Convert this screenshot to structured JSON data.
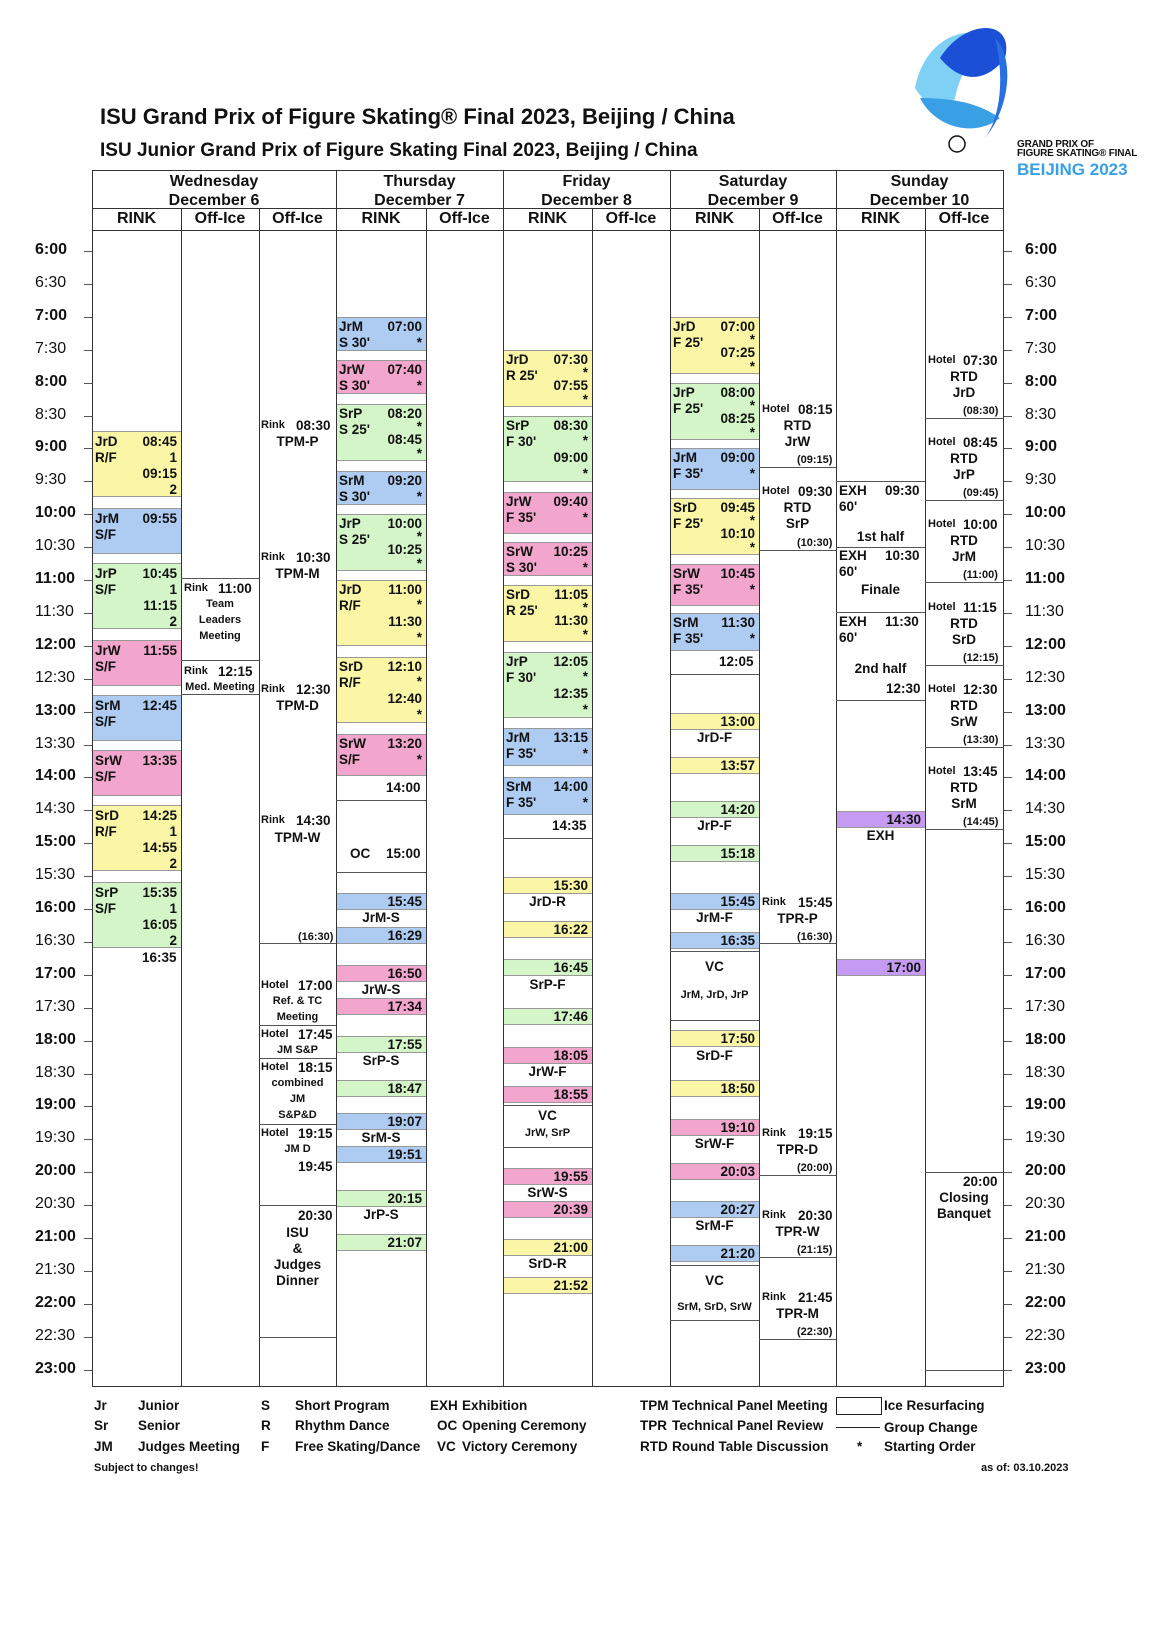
{
  "titles": {
    "main": "ISU Grand Prix of Figure Skating® Final 2023, Beijing / China",
    "junior": "ISU Junior Grand Prix of Figure Skating Final 2023, Beijing / China"
  },
  "logo": {
    "line1": "GRAND PRIX OF",
    "line2": "FIGURE SKATING® FINAL",
    "city": "BEIJING 2023",
    "colors": [
      "#1a4fd6",
      "#3aa0e6",
      "#7fd0f5"
    ]
  },
  "days": [
    {
      "name": "Wednesday",
      "date": "December 6",
      "subcols": [
        "RINK",
        "Off-Ice",
        "Off-Ice"
      ]
    },
    {
      "name": "Thursday",
      "date": "December 7",
      "subcols": [
        "RINK",
        "Off-Ice"
      ]
    },
    {
      "name": "Friday",
      "date": "December 8",
      "subcols": [
        "RINK",
        "Off-Ice"
      ]
    },
    {
      "name": "Saturday",
      "date": "December 9",
      "subcols": [
        "RINK",
        "Off-Ice"
      ]
    },
    {
      "name": "Sunday",
      "date": "December 10",
      "subcols": [
        "RINK",
        "Off-Ice"
      ]
    }
  ],
  "times": [
    "6:00",
    "6:30",
    "7:00",
    "7:30",
    "8:00",
    "8:30",
    "9:00",
    "9:30",
    "10:00",
    "10:30",
    "11:00",
    "11:30",
    "12:00",
    "12:30",
    "13:00",
    "13:30",
    "14:00",
    "14:30",
    "15:00",
    "15:30",
    "16:00",
    "16:30",
    "17:00",
    "17:30",
    "18:00",
    "18:30",
    "19:00",
    "19:30",
    "20:00",
    "20:30",
    "21:00",
    "21:30",
    "22:00",
    "22:30",
    "23:00"
  ],
  "colors": {
    "yellow": "#fbf6a6",
    "blue": "#aecbf1",
    "pink": "#f3a6cd",
    "green": "#d4f5c8",
    "purple": "#c59af2"
  },
  "text": {
    "wed": {
      "jrd_code": "JrD",
      "jrd_rf": "R/F",
      "jrd_t1": "08:45",
      "jrd_n1": "1",
      "jrd_t2": "09:15",
      "jrd_n2": "2",
      "jrm_code": "JrM",
      "jrm_sf": "S/F",
      "jrm_t": "09:55",
      "jrp_code": "JrP",
      "jrp_sf": "S/F",
      "jrp_t1": "10:45",
      "jrp_n1": "1",
      "jrp_t2": "11:15",
      "jrp_n2": "2",
      "jrw_code": "JrW",
      "jrw_sf": "S/F",
      "jrw_t": "11:55",
      "srm_code": "SrM",
      "srm_sf": "S/F",
      "srm_t": "12:45",
      "srw_code": "SrW",
      "srw_sf": "S/F",
      "srw_t": "13:35",
      "srd_code": "SrD",
      "srd_rf": "R/F",
      "srd_t1": "14:25",
      "srd_n1": "1",
      "srd_t2": "14:55",
      "srd_n2": "2",
      "srp_code": "SrP",
      "srp_sf": "S/F",
      "srp_t1": "15:35",
      "srp_n1": "1",
      "srp_t2": "16:05",
      "srp_n2": "2",
      "end": "16:35",
      "o1_rink": "Rink",
      "o1_t": "11:00",
      "o1_l1": "Team",
      "o1_l2": "Leaders",
      "o1_l3": "Meeting",
      "o1b_rink": "Rink",
      "o1b_t": "12:15",
      "o1b_l": "Med. Meeting",
      "o2a_rink": "Rink",
      "o2a_t": "08:30",
      "o2a_l": "TPM-P",
      "o2b_rink": "Rink",
      "o2b_t": "10:30",
      "o2b_l": "TPM-M",
      "o2c_rink": "Rink",
      "o2c_t": "12:30",
      "o2c_l": "TPM-D",
      "o2d_rink": "Rink",
      "o2d_t": "14:30",
      "o2d_l": "TPM-W",
      "o2d_end": "(16:30)",
      "o2e_h": "Hotel",
      "o2e_t": "17:00",
      "o2e_l1": "Ref. & TC",
      "o2e_l2": "Meeting",
      "o2f_h": "Hotel",
      "o2f_t": "17:45",
      "o2f_l": "JM S&P",
      "o2g_h": "Hotel",
      "o2g_t": "18:15",
      "o2g_l1": "combined",
      "o2g_l2": "JM",
      "o2g_l3": "S&P&D",
      "o2h_h": "Hotel",
      "o2h_t": "19:15",
      "o2h_l": "JM D",
      "o2h_end": "19:45",
      "o2i_t": "20:30",
      "o2i_l1": "ISU",
      "o2i_l2": "&",
      "o2i_l3": "Judges",
      "o2i_l4": "Dinner"
    },
    "thu": {
      "jrm_code": "JrM",
      "jrm_s": "S 30'",
      "jrm_t": "07:00",
      "jrm_st": "*",
      "jrw_code": "JrW",
      "jrw_s": "S 30'",
      "jrw_t": "07:40",
      "jrw_st": "*",
      "srp_code": "SrP",
      "srp_s": "S 25'",
      "srp_t1": "08:20",
      "srp_t2": "08:45",
      "srp_st1": "*",
      "srp_st2": "*",
      "srm_code": "SrM",
      "srm_s": "S 30'",
      "srm_t": "09:20",
      "srm_st": "*",
      "jrp_code": "JrP",
      "jrp_s": "S 25'",
      "jrp_t1": "10:00",
      "jrp_t2": "10:25",
      "jrp_st1": "*",
      "jrp_st2": "*",
      "jrd_code": "JrD",
      "jrd_rf": "R/F",
      "jrd_t1": "11:00",
      "jrd_t2": "11:30",
      "jrd_st1": "*",
      "jrd_st2": "*",
      "srd_code": "SrD",
      "srd_rf": "R/F",
      "srd_t1": "12:10",
      "srd_t2": "12:40",
      "srd_st1": "*",
      "srd_st2": "*",
      "srw_code": "SrW",
      "srw_sf": "S/F",
      "srw_t": "13:20",
      "srw_st": "*",
      "end1": "14:00",
      "oc_l": "OC",
      "oc_t": "15:00",
      "jrms_t1": "15:45",
      "jrms_l": "JrM-S",
      "jrms_t2": "16:29",
      "jrws_t1": "16:50",
      "jrws_l": "JrW-S",
      "jrws_t2": "17:34",
      "srps_t1": "17:55",
      "srps_l": "SrP-S",
      "srps_t2": "18:47",
      "srms_t1": "19:07",
      "srms_l": "SrM-S",
      "srms_t2": "19:51",
      "jrps_t1": "20:15",
      "jrps_l": "JrP-S",
      "jrps_t2": "21:07"
    },
    "fri": {
      "jrd_code": "JrD",
      "jrd_r": "R 25'",
      "jrd_t1": "07:30",
      "jrd_t2": "07:55",
      "jrd_st1": "*",
      "jrd_st2": "*",
      "srp_code": "SrP",
      "srp_f": "F 30'",
      "srp_t1": "08:30",
      "srp_t2": "09:00",
      "srp_st1": "*",
      "srp_st2": "*",
      "jrw_code": "JrW",
      "jrw_f": "F 35'",
      "jrw_t": "09:40",
      "jrw_st": "*",
      "srw_code": "SrW",
      "srw_s": "S 30'",
      "srw_t": "10:25",
      "srw_st": "*",
      "srd_code": "SrD",
      "srd_r": "R 25'",
      "srd_t1": "11:05",
      "srd_t2": "11:30",
      "srd_st1": "*",
      "srd_st2": "*",
      "jrp_code": "JrP",
      "jrp_f": "F 30'",
      "jrp_t1": "12:05",
      "jrp_t2": "12:35",
      "jrp_st1": "*",
      "jrp_st2": "*",
      "jrm_code": "JrM",
      "jrm_f": "F 35'",
      "jrm_t": "13:15",
      "jrm_st": "*",
      "srm_code": "SrM",
      "srm_f": "F 35'",
      "srm_t": "14:00",
      "srm_st": "*",
      "end1": "14:35",
      "jrdr_t1": "15:30",
      "jrdr_l": "JrD-R",
      "jrdr_t2": "16:22",
      "srpf_t1": "16:45",
      "srpf_l": "SrP-F",
      "srpf_t2": "17:46",
      "jrwf_t1": "18:05",
      "jrwf_l": "JrW-F",
      "jrwf_t2": "18:55",
      "vc_l": "VC",
      "vc_s": "JrW, SrP",
      "srws_t1": "19:55",
      "srws_l": "SrW-S",
      "srws_t2": "20:39",
      "srdr_t1": "21:00",
      "srdr_l": "SrD-R",
      "srdr_t2": "21:52"
    },
    "sat": {
      "jrd_code": "JrD",
      "jrd_f": "F 25'",
      "jrd_t1": "07:00",
      "jrd_t2": "07:25",
      "jrd_st1": "*",
      "jrd_st2": "*",
      "jrp_code": "JrP",
      "jrp_f": "F 25'",
      "jrp_t1": "08:00",
      "jrp_t2": "08:25",
      "jrp_st1": "*",
      "jrp_st2": "*",
      "jrm_code": "JrM",
      "jrm_f": "F 35'",
      "jrm_t": "09:00",
      "jrm_st": "*",
      "srd_code": "SrD",
      "srd_f": "F 25'",
      "srd_t1": "09:45",
      "srd_t2": "10:10",
      "srd_st1": "*",
      "srd_st2": "*",
      "srw_code": "SrW",
      "srw_f": "F 35'",
      "srw_t": "10:45",
      "srw_st": "*",
      "srm_code": "SrM",
      "srm_f": "F 35'",
      "srm_t": "11:30",
      "srm_st": "*",
      "end1": "12:05",
      "jrdf_t1": "13:00",
      "jrdf_l": "JrD-F",
      "jrdf_t2": "13:57",
      "jrpf_t1": "14:20",
      "jrpf_l": "JrP-F",
      "jrpf_t2": "15:18",
      "jrmf_t1": "15:45",
      "jrmf_l": "JrM-F",
      "jrmf_t2": "16:35",
      "vc1_l": "VC",
      "vc1_s": "JrM, JrD, JrP",
      "srdf_t1": "17:50",
      "srdf_l": "SrD-F",
      "srdf_t2": "18:50",
      "srwf_t1": "19:10",
      "srwf_l": "SrW-F",
      "srwf_t2": "20:03",
      "srmf_t1": "20:27",
      "srmf_l": "SrM-F",
      "srmf_t2": "21:20",
      "vc2_l": "VC",
      "vc2_s": "SrM, SrD, SrW",
      "o_a_h": "Hotel",
      "o_a_t": "08:15",
      "o_a_l1": "RTD",
      "o_a_l2": "JrW",
      "o_a_e": "(09:15)",
      "o_b_h": "Hotel",
      "o_b_t": "09:30",
      "o_b_l1": "RTD",
      "o_b_l2": "SrP",
      "o_b_e": "(10:30)",
      "o_c_r": "Rink",
      "o_c_t": "15:45",
      "o_c_l": "TPR-P",
      "o_c_e": "(16:30)",
      "o_d_r": "Rink",
      "o_d_t": "19:15",
      "o_d_l": "TPR-D",
      "o_d_e": "(20:00)",
      "o_e_r": "Rink",
      "o_e_t": "20:30",
      "o_e_l": "TPR-W",
      "o_e_e": "(21:15)",
      "o_f_r": "Rink",
      "o_f_t": "21:45",
      "o_f_l": "TPR-M",
      "o_f_e": "(22:30)"
    },
    "sun": {
      "exh1_l": "EXH",
      "exh1_t": "09:30",
      "exh1_d": "60'",
      "half1": "1st half",
      "exh2_l": "EXH",
      "exh2_t": "10:30",
      "exh2_d": "60'",
      "finale": "Finale",
      "exh3_l": "EXH",
      "exh3_t": "11:30",
      "exh3_d": "60'",
      "half2": "2nd half",
      "end1": "12:30",
      "exh_t1": "14:30",
      "exh_l": "EXH",
      "exh_t2": "17:00",
      "o_a_h": "Hotel",
      "o_a_t": "07:30",
      "o_a_l1": "RTD",
      "o_a_l2": "JrD",
      "o_a_e": "(08:30)",
      "o_b_h": "Hotel",
      "o_b_t": "08:45",
      "o_b_l1": "RTD",
      "o_b_l2": "JrP",
      "o_b_e": "(09:45)",
      "o_c_h": "Hotel",
      "o_c_t": "10:00",
      "o_c_l1": "RTD",
      "o_c_l2": "JrM",
      "o_c_e": "(11:00)",
      "o_d_h": "Hotel",
      "o_d_t": "11:15",
      "o_d_l1": "RTD",
      "o_d_l2": "SrD",
      "o_d_e": "(12:15)",
      "o_e_h": "Hotel",
      "o_e_t": "12:30",
      "o_e_l1": "RTD",
      "o_e_l2": "SrW",
      "o_e_e": "(13:30)",
      "o_f_h": "Hotel",
      "o_f_t": "13:45",
      "o_f_l1": "RTD",
      "o_f_l2": "SrM",
      "o_f_e": "(14:45)",
      "o_g_t": "20:00",
      "o_g_l1": "Closing",
      "o_g_l2": "Banquet"
    }
  },
  "legend": {
    "col1": [
      [
        "Jr",
        "Junior"
      ],
      [
        "Sr",
        "Senior"
      ],
      [
        "JM",
        "Judges Meeting"
      ]
    ],
    "col2": [
      [
        "S",
        "Short Program"
      ],
      [
        "R",
        "Rhythm Dance"
      ],
      [
        "F",
        "Free Skating/Dance"
      ]
    ],
    "col3": [
      [
        "EXH",
        "Exhibition"
      ],
      [
        "OC",
        "Opening Ceremony"
      ],
      [
        "VC",
        "Victory Ceremony"
      ]
    ],
    "col4": [
      [
        "TPM",
        "Technical Panel Meeting"
      ],
      [
        "TPR",
        "Technical Panel Review"
      ],
      [
        "RTD",
        "Round Table Discussion"
      ]
    ],
    "col5": [
      [
        "Ice Resurfacing"
      ],
      [
        "Group Change"
      ],
      [
        "*",
        "Starting Order"
      ]
    ]
  },
  "footer": {
    "note": "Subject to changes!",
    "asof": "as of: 03.10.2023"
  }
}
